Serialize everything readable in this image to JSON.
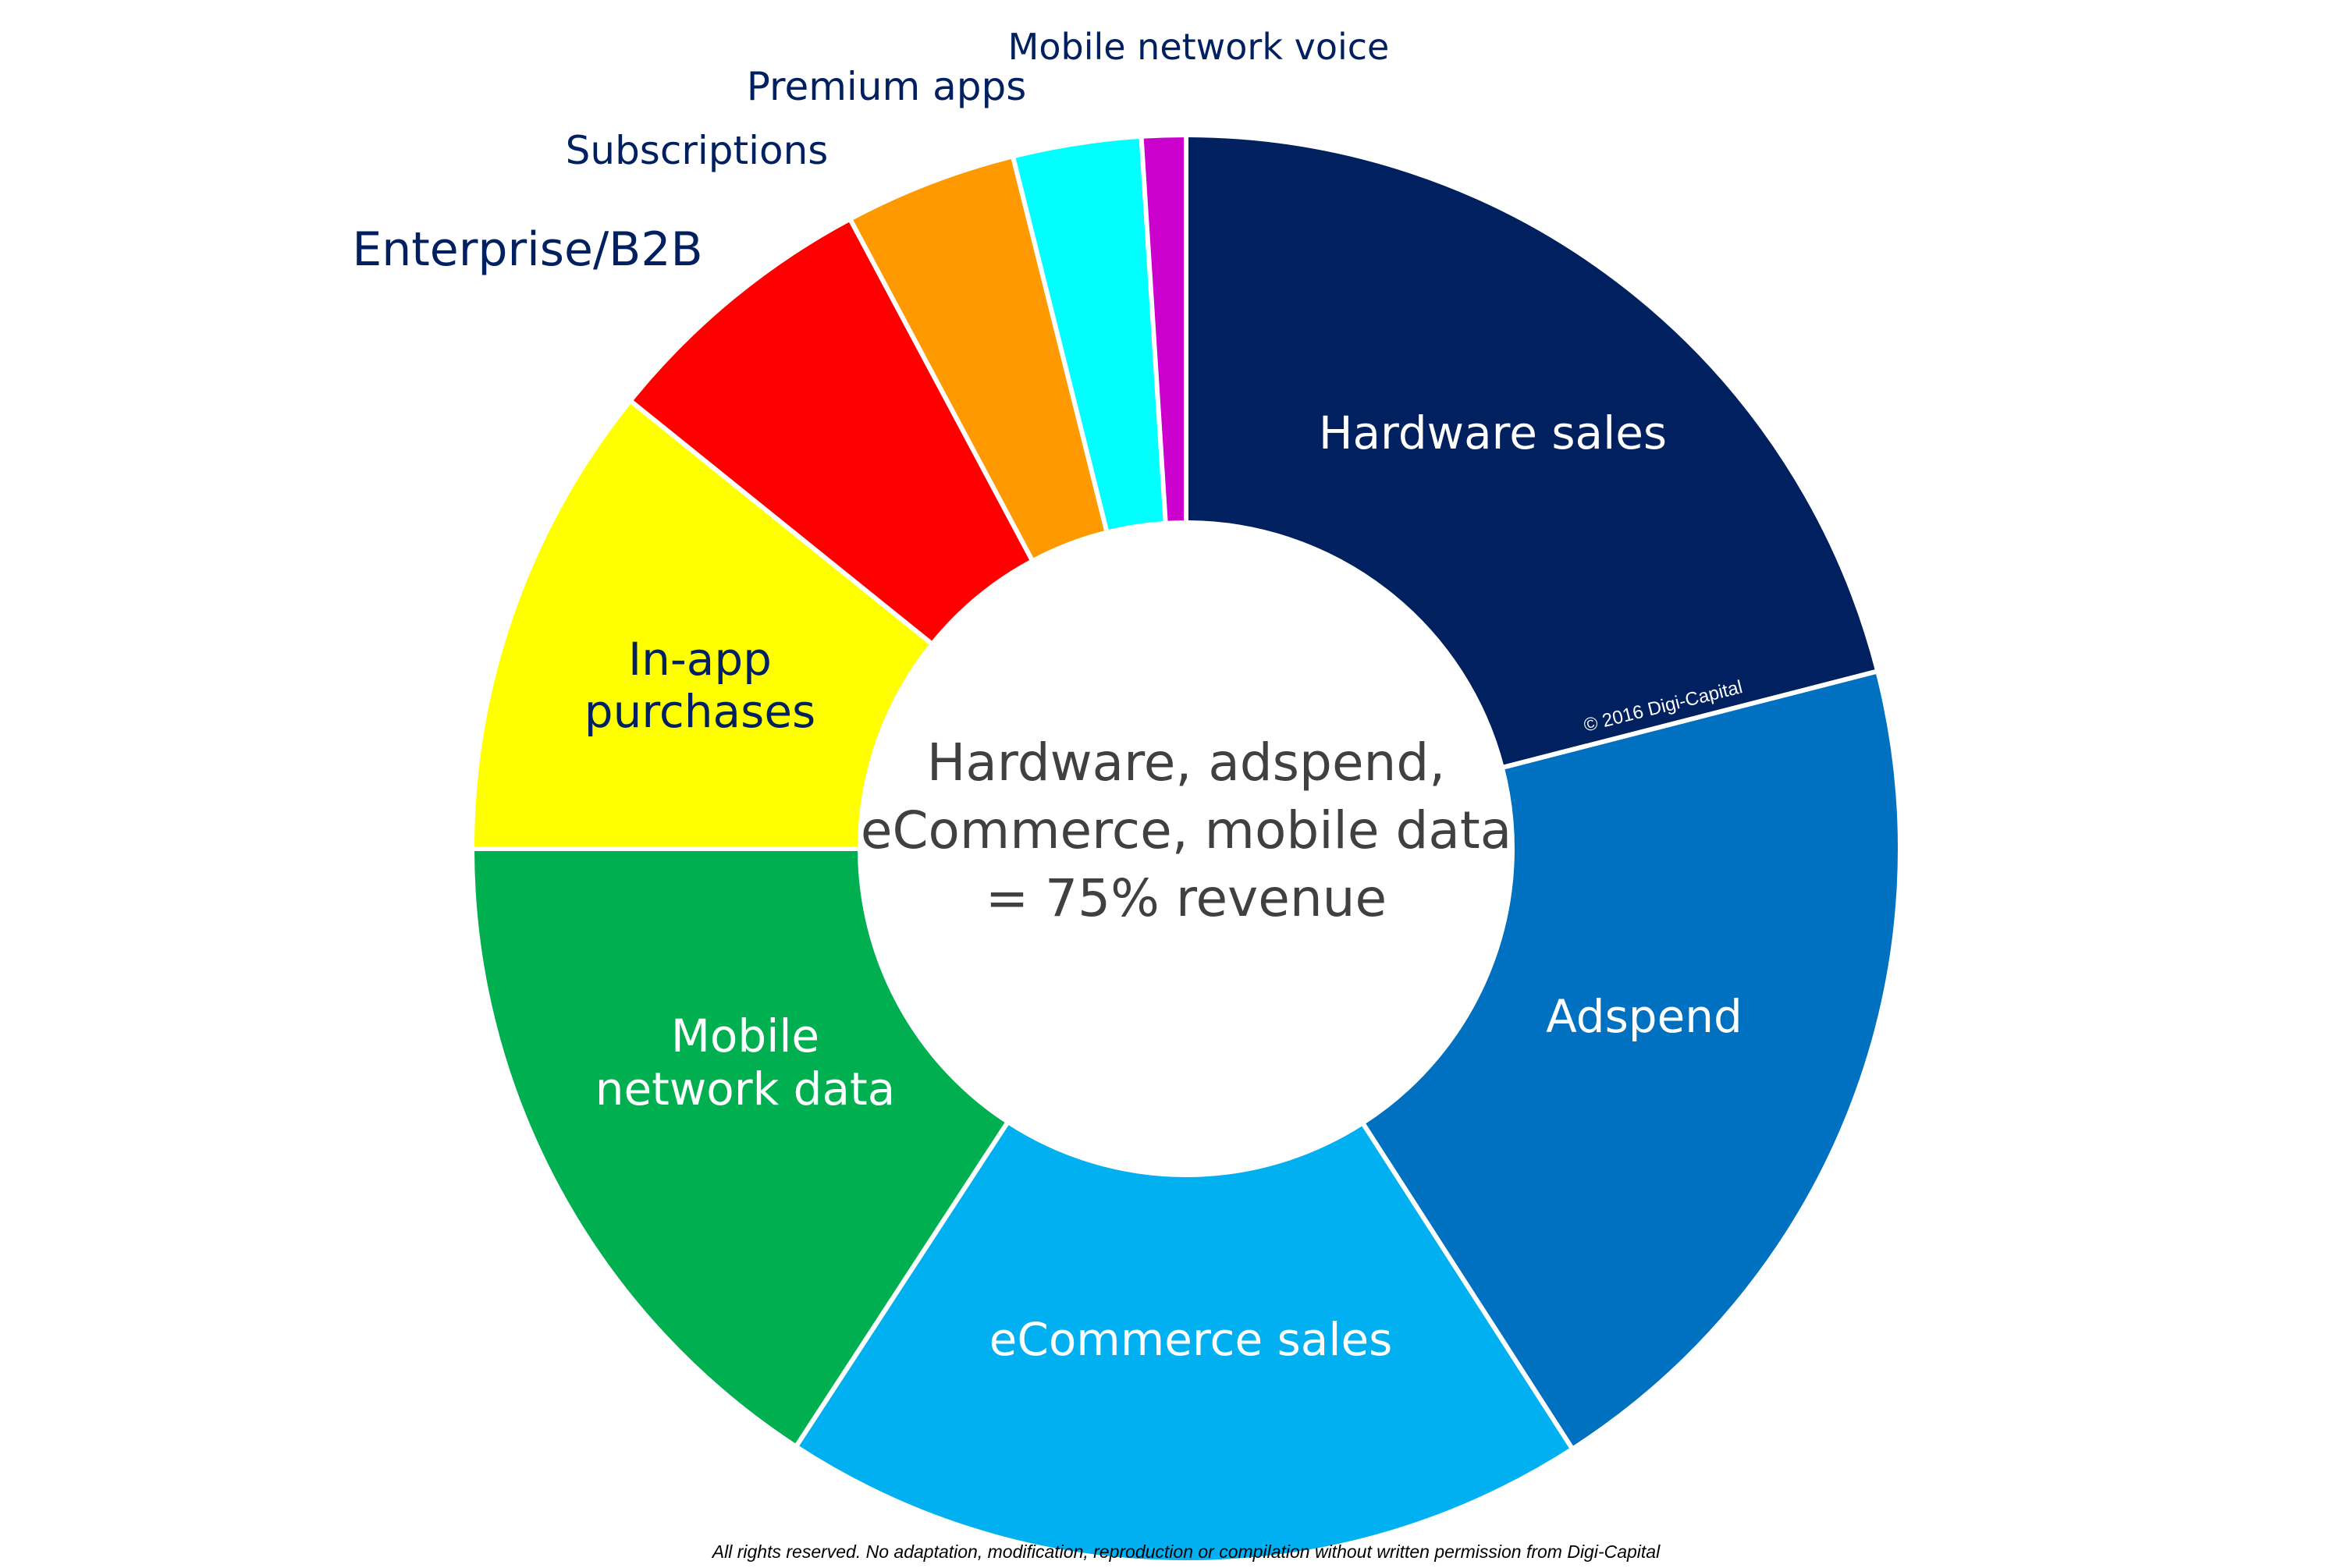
{
  "chart_data": {
    "type": "pie",
    "variant": "donut",
    "start": "12 o'clock, clockwise",
    "slices": [
      {
        "label": "Hardware sales",
        "value": 21.0,
        "color": "#002060",
        "label_color": "#ffffff"
      },
      {
        "label": "Adspend",
        "value": 19.9,
        "color": "#0070C0",
        "label_color": "#ffffff"
      },
      {
        "label": "eCommerce sales",
        "value": 18.3,
        "color": "#00B0F0",
        "label_color": "#ffffff"
      },
      {
        "label": "Mobile network data",
        "value": 15.8,
        "color": "#00B050",
        "label_color": "#ffffff"
      },
      {
        "label": "In-app purchases",
        "value": 10.8,
        "color": "#FFFF00",
        "label_color": "#002060"
      },
      {
        "label": "Enterprise/B2B",
        "value": 6.4,
        "color": "#FF0000",
        "label_color": "#002060"
      },
      {
        "label": "Subscriptions",
        "value": 3.9,
        "color": "#FF9900",
        "label_color": "#002060"
      },
      {
        "label": "Premium apps",
        "value": 2.9,
        "color": "#00FFFF",
        "label_color": "#002060"
      },
      {
        "label": "Mobile network voice",
        "value": 1.0,
        "color": "#CC00CC",
        "label_color": "#002060"
      }
    ],
    "center_text": [
      "Hardware, adspend,",
      "eCommerce, mobile data",
      "= 75% revenue"
    ],
    "watermark": "© 2016 Digi-Capital",
    "footer": "All rights reserved. No adaptation, modification, reproduction or compilation without written permission from Digi-Capital"
  }
}
